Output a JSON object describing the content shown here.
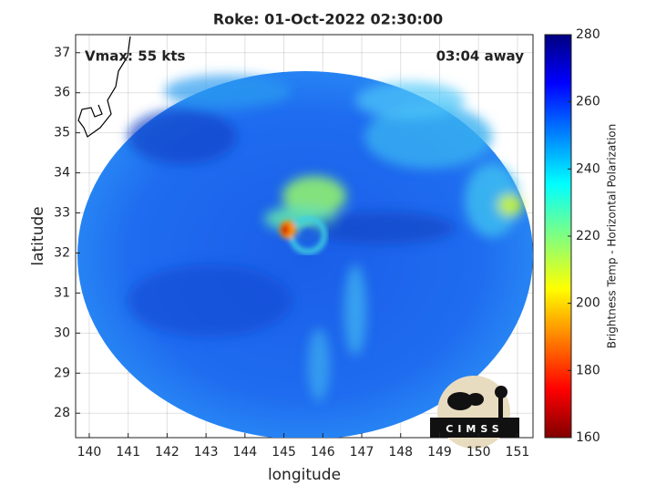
{
  "chart_data": {
    "type": "image",
    "title": "Roke: 01-Oct-2022 02:30:00",
    "annotations": [
      "Vmax: 55 kts",
      "03:04 away"
    ],
    "x_label": "longitude",
    "y_label": "latitude",
    "xlim": [
      139.65,
      151.4
    ],
    "ylim": [
      27.39,
      37.45
    ],
    "xticks": [
      140,
      141,
      142,
      143,
      144,
      145,
      146,
      147,
      148,
      149,
      150,
      151
    ],
    "yticks": [
      28,
      29,
      30,
      31,
      32,
      33,
      34,
      35,
      36,
      37
    ],
    "grid": true,
    "colorbar": {
      "label": "Brightness Temp - Horizontal Polarization",
      "lim": [
        160,
        280
      ],
      "ticks": [
        160,
        180,
        200,
        220,
        240,
        260,
        280
      ],
      "colormap": "jet"
    },
    "logo": "CIMSS"
  }
}
